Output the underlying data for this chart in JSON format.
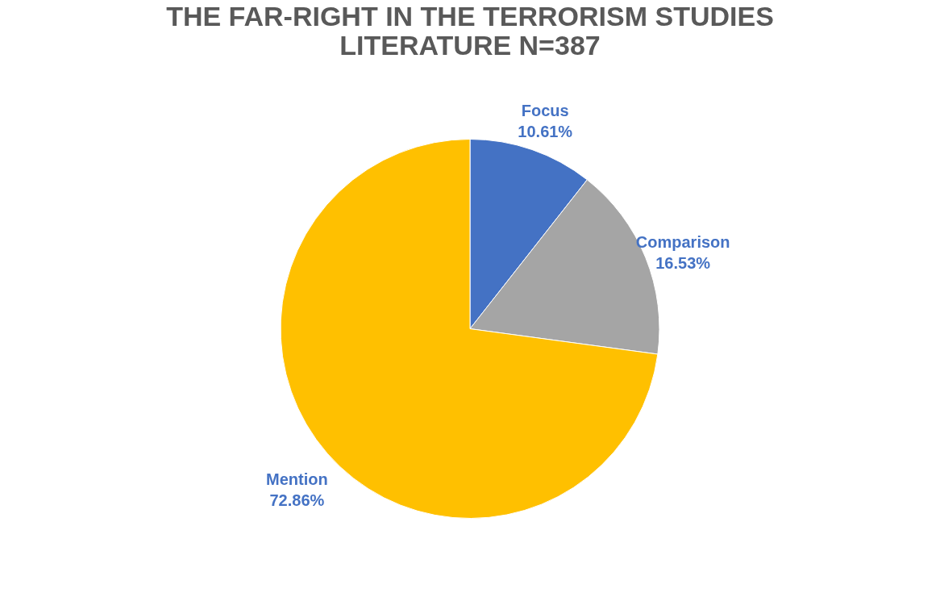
{
  "chart_data": {
    "type": "pie",
    "title": "THE FAR-RIGHT IN THE TERRORISM STUDIES LITERATURE N=387",
    "categories": [
      "Focus",
      "Comparison",
      "Mention"
    ],
    "values": [
      10.61,
      16.53,
      72.86
    ],
    "colors": [
      "#4472c4",
      "#a5a5a5",
      "#ffc000"
    ],
    "value_labels": [
      "10.61%",
      "16.53%",
      "72.86%"
    ],
    "legend": false
  }
}
